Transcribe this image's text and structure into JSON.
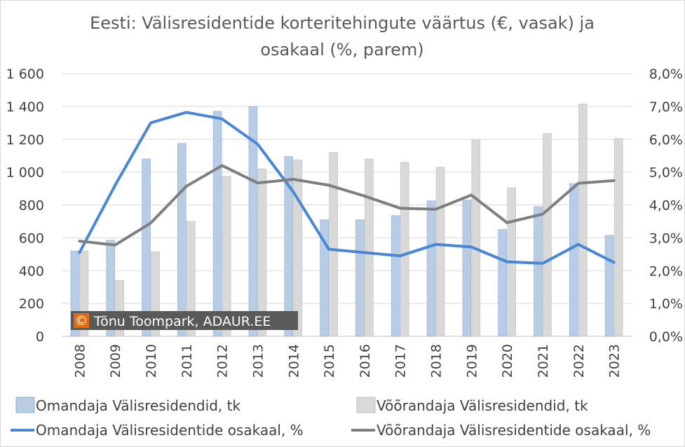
{
  "colors": {
    "owner_bar_fill": "#b8cce4",
    "owner_bar_stroke": "#8eaedb",
    "renter_bar_fill": "#d9d9d9",
    "renter_bar_stroke": "#bfbfbf",
    "owner_line": "#4a86d6",
    "renter_line": "#7f7f7f",
    "gridline": "#d9d9d9",
    "credit_bg": "#595959",
    "credit_badge": "#e46c0a"
  },
  "credit": {
    "symbol": "©",
    "text": "Tõnu Toompark, ADAUR.EE"
  },
  "chart_data": {
    "type": "bar",
    "title_lines": [
      "Eesti: Välisresidentide korteritehingute väärtus (€, vasak) ja",
      "osakaal (%, parem)"
    ],
    "categories": [
      "2008",
      "2009",
      "2010",
      "2011",
      "2012",
      "2013",
      "2014",
      "2015",
      "2016",
      "2017",
      "2018",
      "2019",
      "2020",
      "2021",
      "2022",
      "2023"
    ],
    "y_left": {
      "min": 0,
      "max": 1600,
      "step": 200,
      "tick_labels": [
        "0",
        "200",
        "400",
        "600",
        "800",
        "1 000",
        "1 200",
        "1 400",
        "1 600"
      ]
    },
    "y_right": {
      "min": 0,
      "max": 8,
      "step": 1,
      "tick_labels": [
        "0,0%",
        "1,0%",
        "2,0%",
        "3,0%",
        "4,0%",
        "5,0%",
        "6,0%",
        "7,0%",
        "8,0%"
      ]
    },
    "grid": true,
    "legend_position": "bottom",
    "series": [
      {
        "name": "Omandaja Välisresidendid, tk",
        "type": "bar",
        "axis": "left",
        "values": [
          520,
          585,
          1080,
          1175,
          1370,
          1400,
          1095,
          710,
          710,
          735,
          825,
          830,
          650,
          790,
          930,
          615
        ]
      },
      {
        "name": "Võõrandaja Välisresidendid, tk",
        "type": "bar",
        "axis": "left",
        "values": [
          520,
          340,
          515,
          700,
          975,
          1020,
          1075,
          1120,
          1080,
          1060,
          1030,
          1195,
          905,
          1235,
          1415,
          1205
        ]
      },
      {
        "name": "Omandaja Välisresidentide osakaal, %",
        "type": "line",
        "axis": "right",
        "values": [
          2.55,
          4.6,
          6.5,
          6.82,
          6.62,
          5.85,
          4.4,
          2.65,
          2.55,
          2.45,
          2.8,
          2.72,
          2.27,
          2.22,
          2.8,
          2.25
        ]
      },
      {
        "name": "Võõrandaja Välisresidentide osakaal, %",
        "type": "line",
        "axis": "right",
        "values": [
          2.9,
          2.78,
          3.45,
          4.57,
          5.2,
          4.67,
          4.78,
          4.6,
          4.27,
          3.9,
          3.87,
          4.3,
          3.46,
          3.72,
          4.66,
          4.74
        ]
      }
    ]
  }
}
